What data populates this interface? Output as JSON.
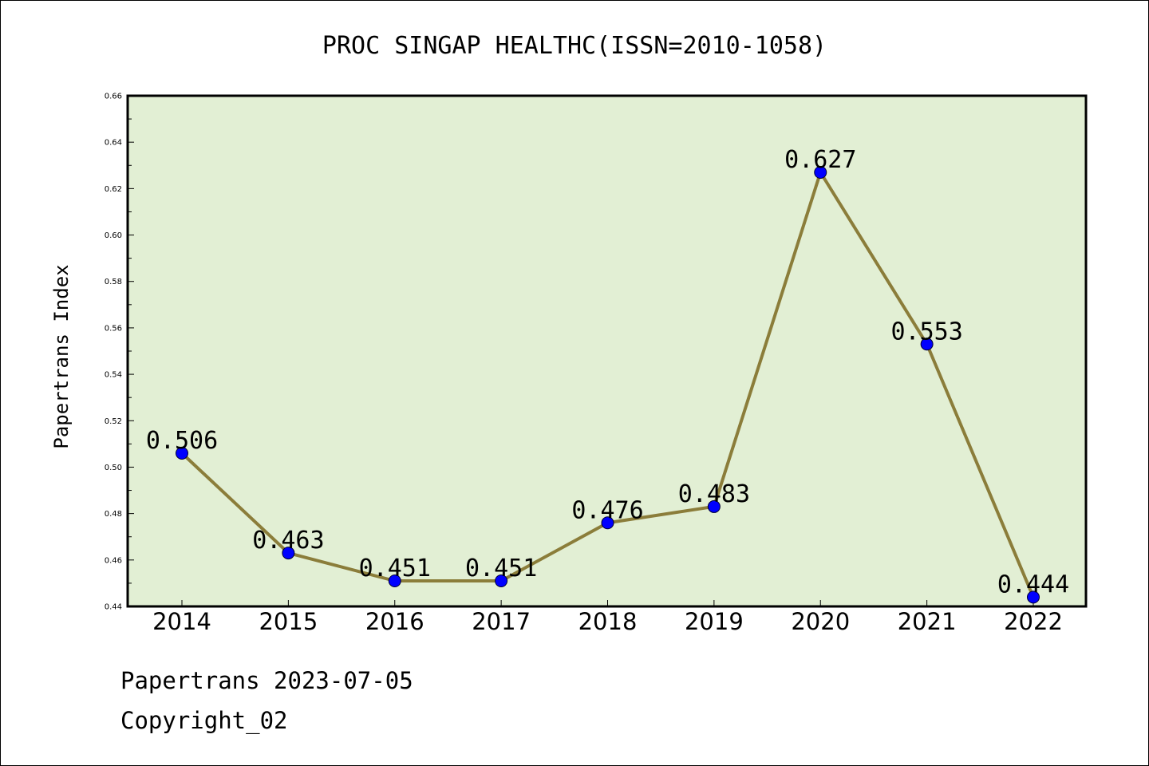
{
  "chart_data": {
    "type": "line",
    "title": "PROC SINGAP HEALTHC(ISSN=2010-1058)",
    "xlabel": "",
    "ylabel": "Papertrans Index",
    "categories": [
      "2014",
      "2015",
      "2016",
      "2017",
      "2018",
      "2019",
      "2020",
      "2021",
      "2022"
    ],
    "values": [
      0.506,
      0.463,
      0.451,
      0.451,
      0.476,
      0.483,
      0.627,
      0.553,
      0.444
    ],
    "data_labels": [
      "0.506",
      "0.463",
      "0.451",
      "0.451",
      "0.476",
      "0.483",
      "0.627",
      "0.553",
      "0.444"
    ],
    "ylim": [
      0.44,
      0.66
    ],
    "yticks": [
      "0.44",
      "0.46",
      "0.48",
      "0.50",
      "0.52",
      "0.54",
      "0.56",
      "0.58",
      "0.60",
      "0.62",
      "0.64",
      "0.66"
    ],
    "grid": false,
    "legend": "none",
    "colors": {
      "line": "#8b7d3a",
      "marker": "#0000ff",
      "plot_background": "#e2efd4",
      "axes": "#000000"
    }
  },
  "footer": {
    "line1": "Papertrans 2023-07-05",
    "line2": "Copyright_02"
  }
}
